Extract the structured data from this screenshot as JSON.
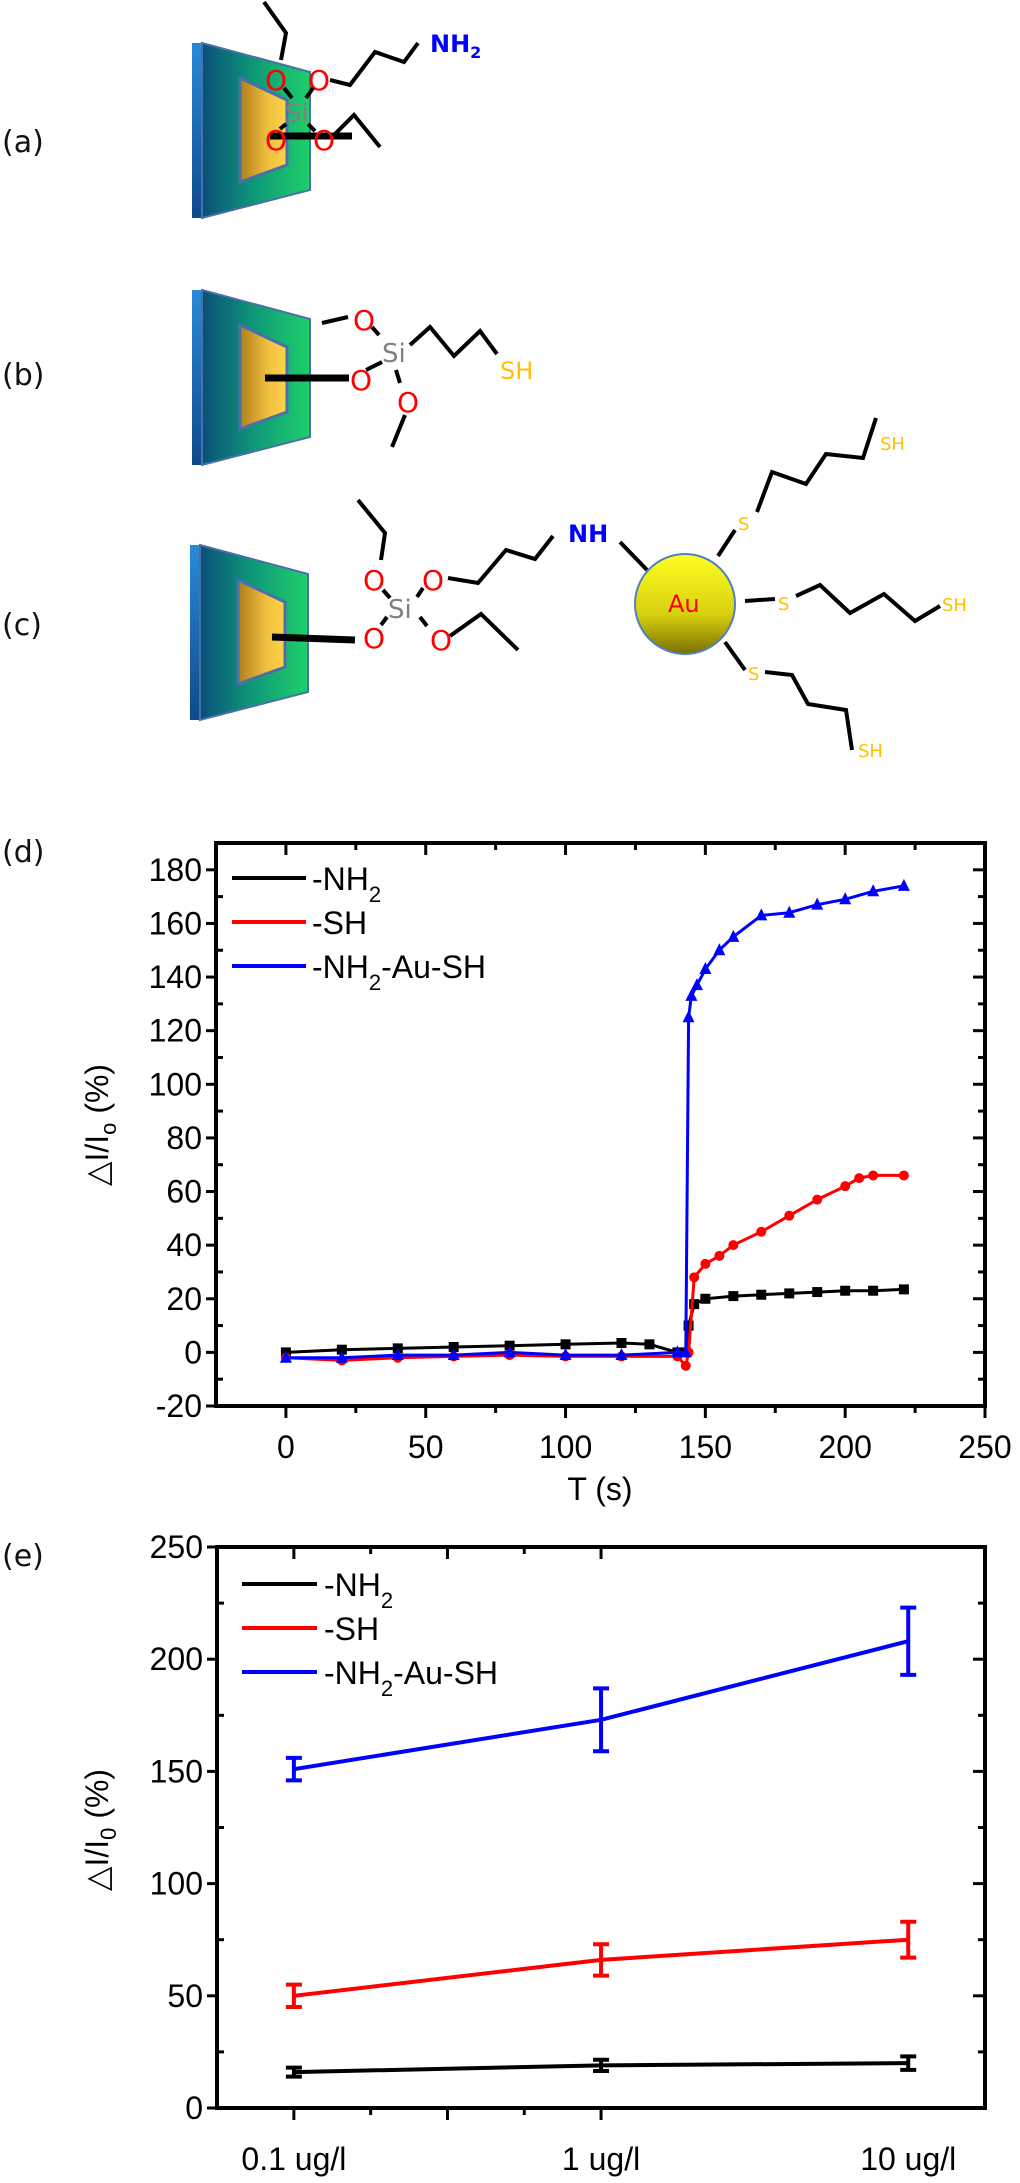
{
  "panels": {
    "a": {
      "label": "(a)",
      "atoms": {
        "si": "Si",
        "o": "O",
        "terminal": "NH",
        "terminal_sub": "2"
      }
    },
    "b": {
      "label": "(b)",
      "atoms": {
        "si": "Si",
        "o": "O",
        "terminal": "SH"
      }
    },
    "c": {
      "label": "(c)",
      "atoms": {
        "si": "Si",
        "o": "O",
        "nh": "NH",
        "au": "Au",
        "s": "S",
        "sh": "SH"
      }
    },
    "d": {
      "label": "(d)"
    },
    "e": {
      "label": "(e)"
    }
  },
  "colors": {
    "oxygen": "#ff0000",
    "silicon": "#808080",
    "nitrogen": "#0000ff",
    "sulfur": "#ffc000",
    "gold_np": "#f0f020",
    "series_nh2": "#000000",
    "series_sh": "#ff0000",
    "series_au": "#0000ff"
  },
  "chart_data": [
    {
      "id": "d",
      "type": "scatter",
      "title": "",
      "xlabel": "T (s)",
      "ylabel": "△I/I",
      "ylabel_sub": "o",
      "ylabel_unit": " (%)",
      "xlim": [
        -25,
        250
      ],
      "ylim": [
        -20,
        190
      ],
      "xticks": [
        0,
        50,
        100,
        150,
        200,
        250
      ],
      "yticks": [
        -20,
        0,
        20,
        40,
        60,
        80,
        100,
        120,
        140,
        160,
        180
      ],
      "legend_position": "top-left",
      "grid": false,
      "injection_time": 144,
      "series": [
        {
          "name": "-NH",
          "name_sub": "2",
          "name_tail": "",
          "color": "#000000",
          "marker": "square",
          "x": [
            0,
            20,
            40,
            60,
            80,
            100,
            120,
            130,
            140,
            143,
            144,
            146,
            150,
            160,
            170,
            180,
            190,
            200,
            210,
            221
          ],
          "y": [
            0,
            1,
            1.5,
            2,
            2.5,
            3,
            3.5,
            3,
            0,
            0,
            10,
            18,
            20,
            21,
            21.5,
            22,
            22.5,
            23,
            23,
            23.5
          ]
        },
        {
          "name": "-SH",
          "name_sub": "",
          "name_tail": "",
          "color": "#ff0000",
          "marker": "circle",
          "x": [
            0,
            20,
            40,
            60,
            80,
            100,
            120,
            140,
            143,
            144,
            146,
            150,
            155,
            160,
            170,
            180,
            190,
            200,
            205,
            210,
            221
          ],
          "y": [
            -2,
            -3,
            -2,
            -1.5,
            -1,
            -1.5,
            -1.5,
            -1.5,
            -5,
            0,
            28,
            33,
            36,
            40,
            45,
            51,
            57,
            62,
            65,
            66,
            66
          ]
        },
        {
          "name": "-NH",
          "name_sub": "2",
          "name_tail": "-Au-SH",
          "color": "#0000ff",
          "marker": "triangle",
          "x": [
            0,
            20,
            40,
            60,
            80,
            100,
            120,
            140,
            143,
            144,
            145,
            147,
            150,
            155,
            160,
            170,
            180,
            190,
            200,
            210,
            221
          ],
          "y": [
            -2,
            -2,
            -1,
            -1,
            0,
            -1,
            -1,
            0,
            0,
            125,
            133,
            137,
            143,
            150,
            155,
            163,
            164,
            167,
            169,
            172,
            174
          ]
        }
      ]
    },
    {
      "id": "e",
      "type": "line",
      "title": "",
      "xlabel": "",
      "ylabel": "△I/I",
      "ylabel_sub": "0",
      "ylabel_unit": " (%)",
      "xscale": "log",
      "x": [
        0.1,
        1,
        10
      ],
      "categories": [
        "0.1 ug/l",
        "1 ug/l",
        "10 ug/l"
      ],
      "xlim": [
        0.0562,
        17.78
      ],
      "ylim": [
        0,
        250
      ],
      "yticks": [
        0,
        50,
        100,
        150,
        200,
        250
      ],
      "legend_position": "top-left",
      "grid": false,
      "series": [
        {
          "name": "-NH",
          "name_sub": "2",
          "name_tail": "",
          "color": "#000000",
          "values": [
            16,
            19,
            20
          ],
          "errors": [
            2,
            2.5,
            3
          ]
        },
        {
          "name": "-SH",
          "name_sub": "",
          "name_tail": "",
          "color": "#ff0000",
          "values": [
            50,
            66,
            75
          ],
          "errors": [
            5,
            7,
            8
          ]
        },
        {
          "name": "-NH",
          "name_sub": "2",
          "name_tail": "-Au-SH",
          "color": "#0000ff",
          "values": [
            151,
            173,
            208
          ],
          "errors": [
            5,
            14,
            15
          ]
        }
      ]
    }
  ]
}
